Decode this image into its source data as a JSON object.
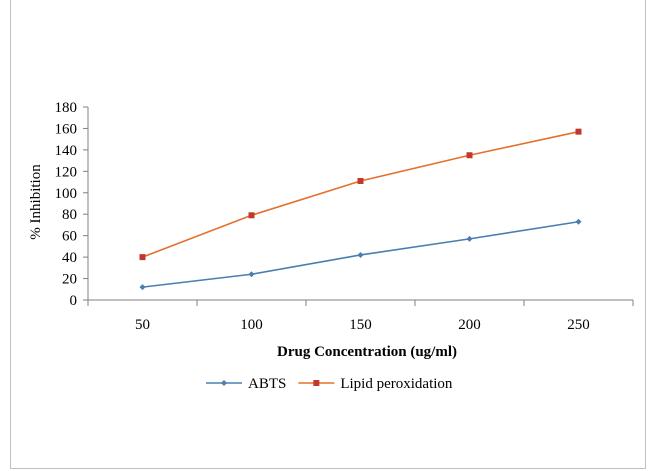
{
  "chart_data": {
    "type": "line",
    "xlabel": "Drug Concentration (ug/ml)",
    "ylabel": "% Inhibition",
    "categories": [
      "50",
      "100",
      "150",
      "200",
      "250"
    ],
    "ylim": [
      0,
      180
    ],
    "yticks": [
      0,
      20,
      40,
      60,
      80,
      100,
      120,
      140,
      160,
      180
    ],
    "grid": false,
    "legend_position": "bottom",
    "series": [
      {
        "name": "ABTS",
        "values": [
          12,
          24,
          42,
          57,
          73
        ],
        "color": "#4a7eb0",
        "marker": "diamond"
      },
      {
        "name": "Lipid peroxidation",
        "values": [
          40,
          79,
          111,
          135,
          157
        ],
        "color": "#e4702e",
        "marker": "square",
        "marker_color": "#c0392b"
      }
    ]
  }
}
